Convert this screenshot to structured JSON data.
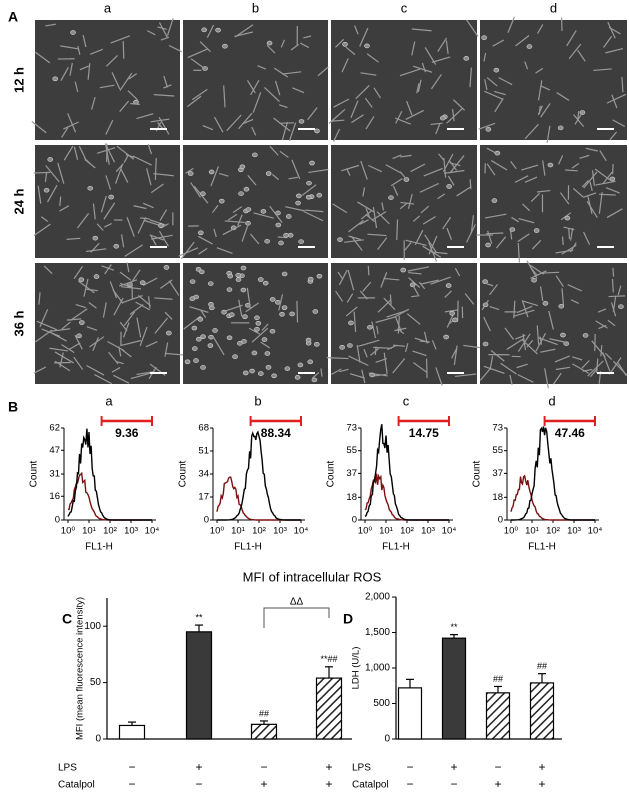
{
  "panel_labels": [
    "A",
    "B",
    "C",
    "D"
  ],
  "images": {
    "columns": [
      "a",
      "b",
      "c",
      "d"
    ],
    "rows": [
      "12 h",
      "24 h",
      "36 h"
    ]
  },
  "flow": {
    "caption": "MFI of intracellular ROS",
    "x_label": "FL1-H",
    "y_label": "Count",
    "xticks": [
      {
        "value": 0,
        "label": "10⁰"
      },
      {
        "value": 1,
        "label": "10¹"
      },
      {
        "value": 2,
        "label": "10²"
      },
      {
        "value": 3,
        "label": "10³"
      },
      {
        "value": 4,
        "label": "10⁴"
      }
    ],
    "panels": [
      {
        "label": "a",
        "value_label": 9.36,
        "yticks": [
          0,
          16,
          31,
          47,
          62
        ]
      },
      {
        "label": "b",
        "value_label": 88.34,
        "yticks": [
          0,
          17,
          34,
          51,
          68
        ]
      },
      {
        "label": "c",
        "value_label": 14.75,
        "yticks": [
          0,
          18,
          37,
          55,
          73
        ]
      },
      {
        "label": "d",
        "value_label": 47.46,
        "yticks": [
          0,
          18,
          37,
          55,
          73
        ]
      }
    ]
  },
  "chart_data": [
    {
      "type": "bar",
      "y_label": "MFI (mean fluorescence intensity)",
      "values": [
        12,
        95,
        13,
        54
      ],
      "errors": [
        3,
        6,
        3,
        10
      ],
      "fills": [
        "white",
        "dark",
        "hatched",
        "hatched"
      ],
      "annotations": [
        null,
        "**",
        "##",
        "**##"
      ],
      "bracket_label": "ΔΔ",
      "ylim": [
        0,
        125
      ],
      "yticks": [
        0,
        50,
        100
      ],
      "treatments": [
        {
          "name": "LPS",
          "signs": [
            "−",
            "+",
            "−",
            "+"
          ]
        },
        {
          "name": "Catalpol",
          "signs": [
            "−",
            "−",
            "+",
            "+"
          ]
        }
      ]
    },
    {
      "type": "bar",
      "y_label": "LDH (U/L)",
      "values": [
        720,
        1420,
        650,
        790
      ],
      "errors": [
        120,
        50,
        90,
        130
      ],
      "fills": [
        "white",
        "dark",
        "hatched",
        "hatched"
      ],
      "annotations": [
        null,
        "**",
        "##",
        "##"
      ],
      "ylim": [
        0,
        2000
      ],
      "yticks": [
        0,
        500,
        {
          "value": 1000,
          "label": "1,000"
        },
        {
          "value": 1500,
          "label": "1,500"
        },
        {
          "value": 2000,
          "label": "2,000"
        }
      ],
      "treatments": [
        {
          "name": "LPS",
          "signs": [
            "−",
            "+",
            "−",
            "+"
          ]
        },
        {
          "name": "Catalpol",
          "signs": [
            "−",
            "−",
            "+",
            "+"
          ]
        }
      ]
    }
  ]
}
